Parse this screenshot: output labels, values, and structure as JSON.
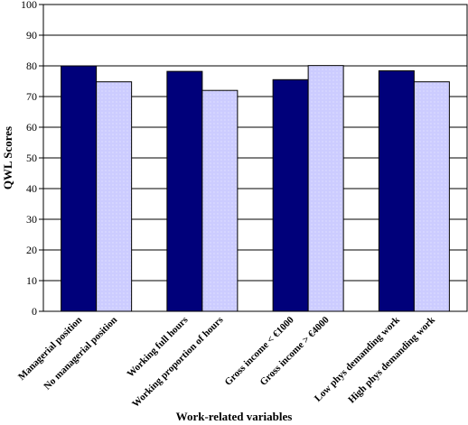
{
  "chart_data": {
    "type": "bar",
    "categories": [
      "Managerial position",
      "No managerial position",
      "Working full hours",
      "Working proportion of hours",
      "Gross income < €1000",
      "Gross income > €4000",
      "Low phys demanding work",
      "High phys demanding work"
    ],
    "values": [
      80,
      74.8,
      78.2,
      72,
      75.5,
      80.1,
      78.4,
      74.8
    ],
    "groups": [
      [
        0,
        1
      ],
      [
        2,
        3
      ],
      [
        4,
        5
      ],
      [
        6,
        7
      ]
    ],
    "bar_colors": [
      "#00007a",
      "#ccccff",
      "#00007a",
      "#ccccff",
      "#00007a",
      "#ccccff",
      "#00007a",
      "#ccccff"
    ],
    "ylim": [
      0,
      100
    ],
    "yticks": [
      0,
      10,
      20,
      30,
      40,
      50,
      60,
      70,
      80,
      90,
      100
    ],
    "xlabel": "Work-related variables",
    "ylabel": "QWL Scores",
    "grid": true,
    "legend": "none"
  }
}
